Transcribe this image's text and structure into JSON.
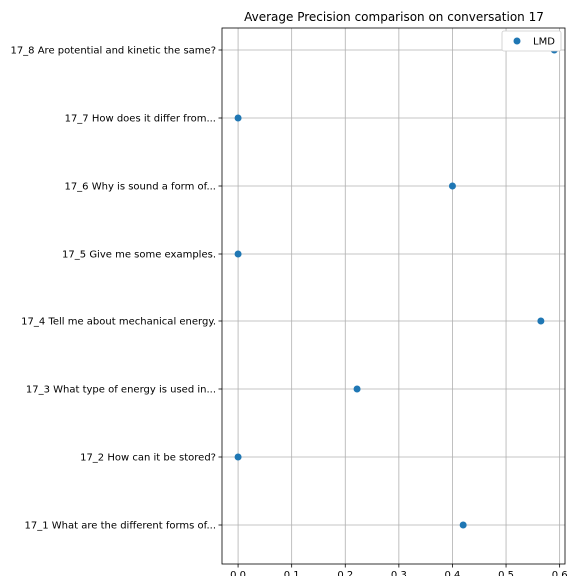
{
  "chart_data": {
    "type": "scatter",
    "title": "Average Precision comparison on conversation 17",
    "xlabel": "",
    "ylabel": "",
    "xlim": [
      -0.03,
      0.61
    ],
    "xticks": [
      0.0,
      0.1,
      0.2,
      0.3,
      0.4,
      0.5,
      0.6
    ],
    "xtick_labels": [
      "0.0",
      "0.1",
      "0.2",
      "0.3",
      "0.4",
      "0.5",
      "0.6"
    ],
    "categories": [
      "17_1 What are the different forms of...",
      "17_2 How can it be stored?",
      "17_3 What type of energy is used in...",
      "17_4 Tell me about mechanical energy.",
      "17_5 Give me some examples.",
      "17_6 Why is sound a form of...",
      "17_7 How does it differ from...",
      "17_8 Are potential and kinetic the same?"
    ],
    "series": [
      {
        "name": "LMD",
        "color": "#1f77b4",
        "values": [
          0.42,
          0.0,
          0.222,
          0.565,
          0.0,
          0.4,
          0.0,
          0.59
        ]
      }
    ],
    "grid": true,
    "legend_position": "top-right"
  }
}
